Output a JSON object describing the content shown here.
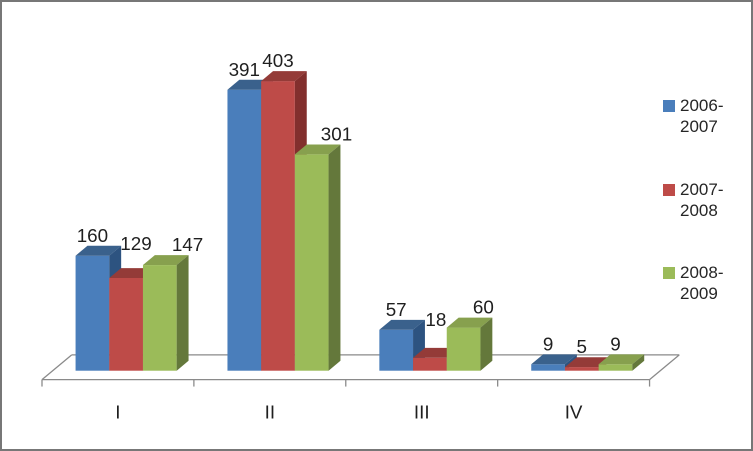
{
  "frame": {
    "background": "#ffffff",
    "border_color": "#777777"
  },
  "chart_data": {
    "type": "bar",
    "subtype": "3d-clustered-column",
    "title": "",
    "xlabel": "",
    "ylabel": "",
    "categories": [
      "I",
      "II",
      "III",
      "IV"
    ],
    "series": [
      {
        "name": "2006-2007",
        "legend_lines": [
          "2006-",
          "2007"
        ],
        "color": "#4A7EBB",
        "color_top": "#3A618C",
        "color_side": "#2D5380",
        "values": [
          160,
          391,
          57,
          9
        ]
      },
      {
        "name": "2007-2008",
        "legend_lines": [
          "2007-",
          "2008"
        ],
        "color": "#BE4B48",
        "color_top": "#943B38",
        "color_side": "#822F2D",
        "values": [
          129,
          403,
          18,
          5
        ]
      },
      {
        "name": "2008-2009",
        "legend_lines": [
          "2008-",
          "2009"
        ],
        "color": "#9BBB59",
        "color_top": "#87A04E",
        "color_side": "#64783B",
        "values": [
          147,
          301,
          60,
          9
        ]
      }
    ],
    "data_labels_visible": true,
    "data_labels": {
      "I": [
        160,
        129,
        147
      ],
      "II": [
        391,
        403,
        301
      ],
      "III": [
        57,
        18,
        60
      ],
      "IV": [
        9,
        5,
        9
      ]
    },
    "legend_position": "right",
    "value_axis_visible": false,
    "grid": false,
    "axis_color": "#8A8A8A",
    "label_color": "#1F1F1F"
  }
}
